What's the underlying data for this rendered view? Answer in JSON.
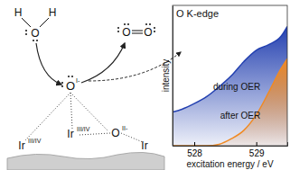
{
  "chart_data": {
    "type": "area",
    "title": "O K-edge",
    "x_label": "excitation energy / eV",
    "y_label": "intensity",
    "x": [
      527.65,
      527.8,
      528,
      528.2,
      528.4,
      528.6,
      528.8,
      529,
      529.2,
      529.4,
      529.5
    ],
    "series": [
      {
        "name": "during OER",
        "color": "#2340b0",
        "values": [
          0.24,
          0.26,
          0.3,
          0.35,
          0.42,
          0.5,
          0.6,
          0.68,
          0.72,
          0.78,
          0.85
        ]
      },
      {
        "name": "after OER",
        "color": "#f08a24",
        "values": [
          0,
          0,
          0,
          0,
          0.01,
          0.05,
          0.11,
          0.22,
          0.38,
          0.55,
          0.62
        ]
      }
    ],
    "xlim": [
      527.65,
      529.5
    ],
    "xticks": [
      528,
      529
    ],
    "ylim": [
      0,
      1
    ],
    "yticks": [],
    "tick_labels": "x",
    "grid": false
  },
  "diagram": {
    "water": {
      "atoms": [
        "H",
        "H",
        "O"
      ]
    },
    "oxygen_molecule": {
      "atoms": [
        "O",
        "O"
      ]
    },
    "adsorbed_oxygen": {
      "label": "O",
      "charge": "I-"
    },
    "surface": [
      {
        "label": "Ir",
        "charge": "III/IV"
      },
      {
        "label": "Ir",
        "charge": "III/IV"
      },
      {
        "label": "O",
        "charge": "II-"
      },
      {
        "label": "Ir"
      }
    ]
  }
}
